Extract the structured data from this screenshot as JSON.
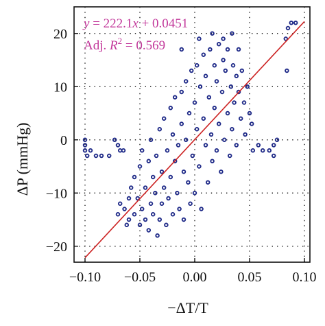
{
  "chart_data": {
    "type": "scatter",
    "xlabel": "−ΔT/T",
    "ylabel": "ΔP (mmHg)",
    "xlim": [
      -0.11,
      0.105
    ],
    "ylim": [
      -23,
      25
    ],
    "x_ticks": [
      -0.1,
      -0.05,
      0.0,
      0.05,
      0.1
    ],
    "x_tick_labels": [
      "−0.10",
      "−0.05",
      "0.00",
      "0.05",
      "0.10"
    ],
    "y_ticks": [
      -20,
      -10,
      0,
      10,
      20
    ],
    "y_tick_labels": [
      "−20",
      "−10",
      "0",
      "10",
      "20"
    ],
    "grid": true,
    "fit_line": {
      "slope": 222.1,
      "intercept": 0.0451,
      "x_range": [
        -0.1,
        0.1
      ],
      "color": "#cc2222"
    },
    "annotations": {
      "equation_y": "y",
      "equation_eq": " = 222.1",
      "equation_x": "x",
      "equation_tail": " + 0.0451",
      "r2_prefix": "Adj. ",
      "r2_R": "R",
      "r2_exp": "2",
      "r2_value": " = 0.569"
    },
    "marker_color": "#1f2a88",
    "annotation_color": "#c2379a",
    "points": [
      [
        -0.1,
        0
      ],
      [
        -0.1,
        -1
      ],
      [
        -0.1,
        -2
      ],
      [
        -0.098,
        -3
      ],
      [
        -0.095,
        -2
      ],
      [
        -0.09,
        -3
      ],
      [
        -0.085,
        -3
      ],
      [
        -0.078,
        -3
      ],
      [
        -0.073,
        0
      ],
      [
        -0.07,
        -1
      ],
      [
        -0.068,
        -2
      ],
      [
        -0.065,
        -2
      ],
      [
        0.053,
        -2
      ],
      [
        0.058,
        -1
      ],
      [
        0.062,
        -2
      ],
      [
        0.068,
        -2
      ],
      [
        0.072,
        -1
      ],
      [
        0.075,
        0
      ],
      [
        0.072,
        -3
      ],
      [
        0.083,
        19
      ],
      [
        0.085,
        21
      ],
      [
        0.088,
        22
      ],
      [
        0.092,
        22
      ],
      [
        0.084,
        13
      ],
      [
        -0.07,
        -14
      ],
      [
        -0.068,
        -12
      ],
      [
        -0.064,
        -13
      ],
      [
        -0.062,
        -16
      ],
      [
        -0.06,
        -15
      ],
      [
        -0.06,
        -11
      ],
      [
        -0.058,
        -9
      ],
      [
        -0.055,
        -14
      ],
      [
        -0.055,
        -7
      ],
      [
        -0.052,
        -11
      ],
      [
        -0.05,
        -16
      ],
      [
        -0.05,
        -5
      ],
      [
        -0.048,
        -13
      ],
      [
        -0.048,
        -2
      ],
      [
        -0.045,
        -9
      ],
      [
        -0.045,
        -15
      ],
      [
        -0.042,
        -17
      ],
      [
        -0.042,
        -4
      ],
      [
        -0.04,
        -12
      ],
      [
        -0.04,
        0
      ],
      [
        -0.038,
        -7
      ],
      [
        -0.038,
        -14
      ],
      [
        -0.036,
        -10
      ],
      [
        -0.035,
        -3
      ],
      [
        -0.034,
        -18
      ],
      [
        -0.032,
        -15
      ],
      [
        -0.032,
        2
      ],
      [
        -0.03,
        -6
      ],
      [
        -0.03,
        -12
      ],
      [
        -0.028,
        -9
      ],
      [
        -0.028,
        4
      ],
      [
        -0.026,
        -16
      ],
      [
        -0.025,
        -2
      ],
      [
        -0.024,
        -11
      ],
      [
        -0.022,
        6
      ],
      [
        -0.022,
        -7
      ],
      [
        -0.02,
        -14
      ],
      [
        -0.02,
        1
      ],
      [
        -0.018,
        -4
      ],
      [
        -0.018,
        8
      ],
      [
        -0.016,
        -10
      ],
      [
        -0.015,
        -1
      ],
      [
        -0.014,
        -13
      ],
      [
        -0.012,
        3
      ],
      [
        -0.012,
        9
      ],
      [
        -0.01,
        -6
      ],
      [
        -0.01,
        -15
      ],
      [
        -0.008,
        0
      ],
      [
        -0.008,
        11
      ],
      [
        -0.006,
        -8
      ],
      [
        -0.005,
        5
      ],
      [
        -0.004,
        -12
      ],
      [
        -0.003,
        13
      ],
      [
        -0.002,
        -3
      ],
      [
        0.0,
        7
      ],
      [
        0.0,
        -10
      ],
      [
        0.002,
        2
      ],
      [
        0.002,
        14
      ],
      [
        0.004,
        -5
      ],
      [
        0.005,
        10
      ],
      [
        0.006,
        -13
      ],
      [
        0.008,
        4
      ],
      [
        0.008,
        16
      ],
      [
        0.01,
        -1
      ],
      [
        0.01,
        12
      ],
      [
        0.012,
        -8
      ],
      [
        0.013,
        8
      ],
      [
        0.014,
        17
      ],
      [
        0.015,
        1
      ],
      [
        0.016,
        -4
      ],
      [
        0.018,
        6
      ],
      [
        0.018,
        14
      ],
      [
        0.02,
        -2
      ],
      [
        0.02,
        11
      ],
      [
        0.022,
        18
      ],
      [
        0.022,
        3
      ],
      [
        0.024,
        -6
      ],
      [
        0.025,
        9
      ],
      [
        0.026,
        15
      ],
      [
        0.027,
        0
      ],
      [
        0.028,
        13
      ],
      [
        0.03,
        5
      ],
      [
        0.03,
        17
      ],
      [
        0.032,
        -3
      ],
      [
        0.033,
        10
      ],
      [
        0.034,
        2
      ],
      [
        0.035,
        14
      ],
      [
        0.036,
        7
      ],
      [
        0.038,
        12
      ],
      [
        0.038,
        -1
      ],
      [
        0.04,
        9
      ],
      [
        0.042,
        4
      ],
      [
        0.043,
        13
      ],
      [
        0.045,
        7
      ],
      [
        0.046,
        1
      ],
      [
        0.048,
        10
      ],
      [
        0.05,
        5
      ],
      [
        0.052,
        3
      ],
      [
        -0.012,
        17
      ],
      [
        0.004,
        19
      ],
      [
        0.016,
        20
      ],
      [
        0.026,
        19
      ],
      [
        0.034,
        20
      ],
      [
        0.04,
        17
      ]
    ]
  }
}
